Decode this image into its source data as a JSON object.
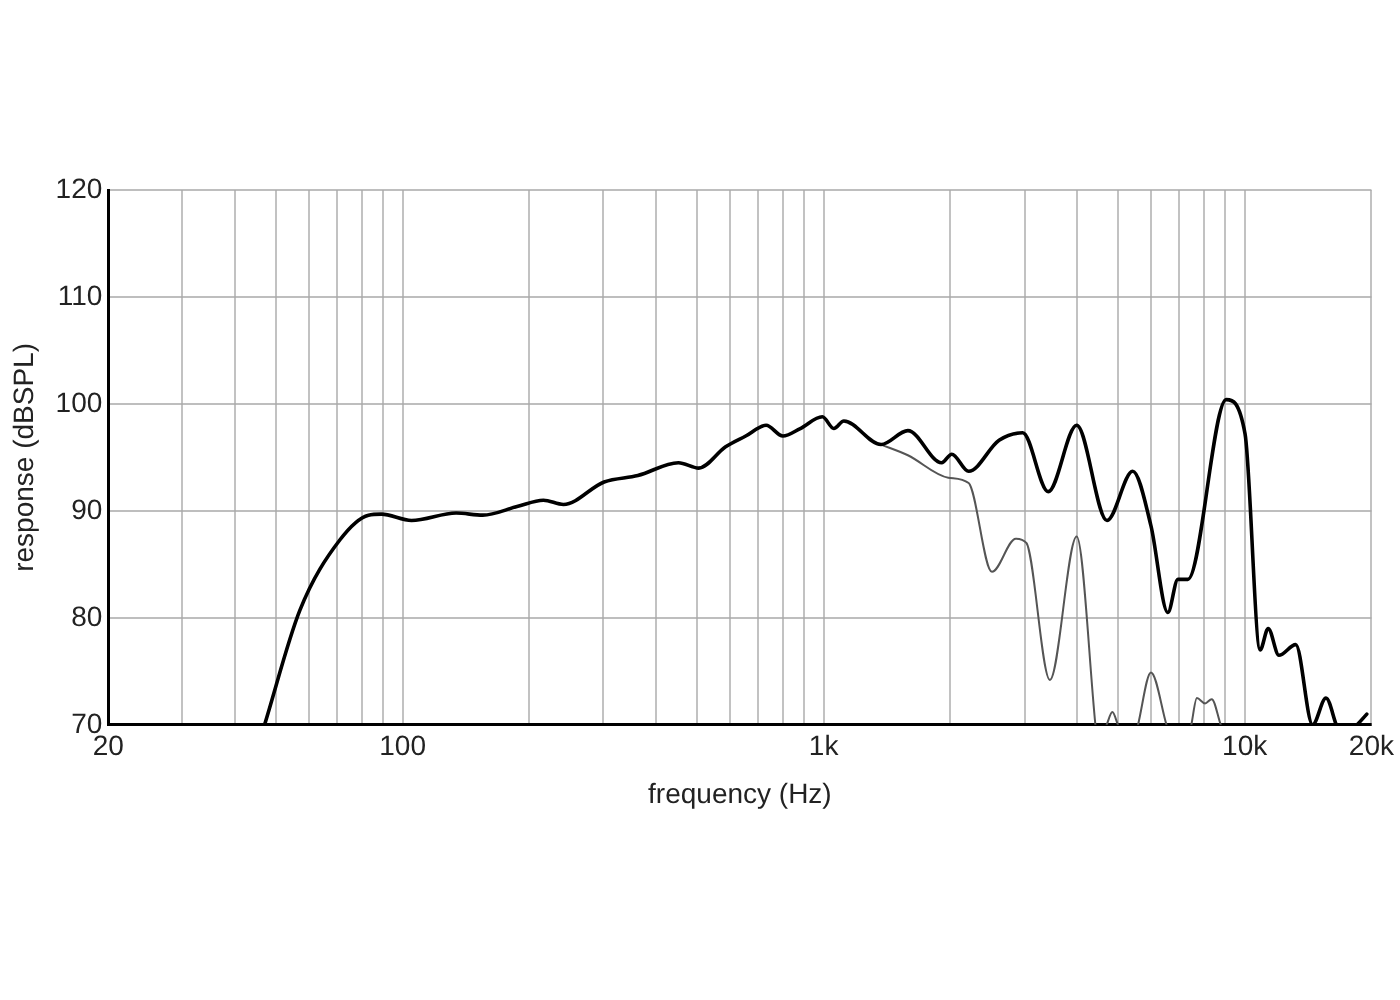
{
  "chart_data": {
    "type": "line",
    "xlabel": "frequency (Hz)",
    "ylabel": "response (dBSPL)",
    "log": "x",
    "grid": true,
    "legend": false,
    "marker": "none",
    "line_style": "solid",
    "xlim": [
      20,
      20000
    ],
    "ylim": [
      70,
      120
    ],
    "xticks": [
      20,
      {
        "value": 30,
        "label": null
      },
      {
        "value": 40,
        "label": null
      },
      {
        "value": 50,
        "label": null
      },
      {
        "value": 60,
        "label": null
      },
      {
        "value": 70,
        "label": null
      },
      {
        "value": 80,
        "label": null
      },
      {
        "value": 90,
        "label": null
      },
      100,
      {
        "value": 200,
        "label": null
      },
      {
        "value": 300,
        "label": null
      },
      {
        "value": 400,
        "label": null
      },
      {
        "value": 500,
        "label": null
      },
      {
        "value": 600,
        "label": null
      },
      {
        "value": 700,
        "label": null
      },
      {
        "value": 800,
        "label": null
      },
      {
        "value": 900,
        "label": null
      },
      {
        "value": 1000,
        "label": "1k"
      },
      {
        "value": 2000,
        "label": null
      },
      {
        "value": 3000,
        "label": null
      },
      {
        "value": 4000,
        "label": null
      },
      {
        "value": 5000,
        "label": null
      },
      {
        "value": 6000,
        "label": null
      },
      {
        "value": 7000,
        "label": null
      },
      {
        "value": 8000,
        "label": null
      },
      {
        "value": 9000,
        "label": null
      },
      {
        "value": 10000,
        "label": "10k"
      },
      {
        "value": 20000,
        "label": "20k"
      }
    ],
    "yticks": [
      70,
      80,
      90,
      100,
      110,
      120
    ],
    "series": [
      {
        "color": "#000000",
        "x": [
          47,
          57,
          71,
          83,
          89,
          105,
          134,
          155,
          187,
          216,
          241,
          301,
          362,
          452,
          505,
          585,
          653,
          730,
          800,
          880,
          993,
          1057,
          1117,
          1369,
          1585,
          1907,
          2015,
          2210,
          2610,
          2970,
          3415,
          3990,
          4710,
          5420,
          5990,
          6570,
          6940,
          7330,
          9040,
          10020,
          10880,
          11370,
          12060,
          13220,
          14500,
          15600,
          16500,
          17500,
          18500,
          19500
        ],
        "values": [
          70,
          80.7,
          87.3,
          89.6,
          89.7,
          89.1,
          89.8,
          89.6,
          90.4,
          91.0,
          90.6,
          92.7,
          93.3,
          94.5,
          94.0,
          96.0,
          97.0,
          98.0,
          97.0,
          97.7,
          98.8,
          97.7,
          98.4,
          96.2,
          97.5,
          94.5,
          95.3,
          93.7,
          96.6,
          97.3,
          91.8,
          98.0,
          89.1,
          93.7,
          88.6,
          80.5,
          83.6,
          83.6,
          100.4,
          97.2,
          77.0,
          79.0,
          76.5,
          77.5,
          70,
          72.5,
          70,
          null,
          70,
          71
        ]
      },
      {
        "color": "#555555",
        "x": [
          1369,
          1585,
          1977,
          2210,
          2510,
          2860,
          3030,
          3446,
          3990,
          4420,
          4600,
          4700,
          4850,
          5000,
          5200,
          5580,
          5990,
          6520,
          6800,
          7470,
          7700,
          8050,
          8350,
          8770
        ],
        "values": [
          96.2,
          95.2,
          93.1,
          92.6,
          84.3,
          87.4,
          87.0,
          74.2,
          87.6,
          70,
          null,
          70,
          71.2,
          70,
          null,
          70,
          74.9,
          70,
          null,
          70,
          72.5,
          72.0,
          72.4,
          70
        ]
      }
    ]
  }
}
